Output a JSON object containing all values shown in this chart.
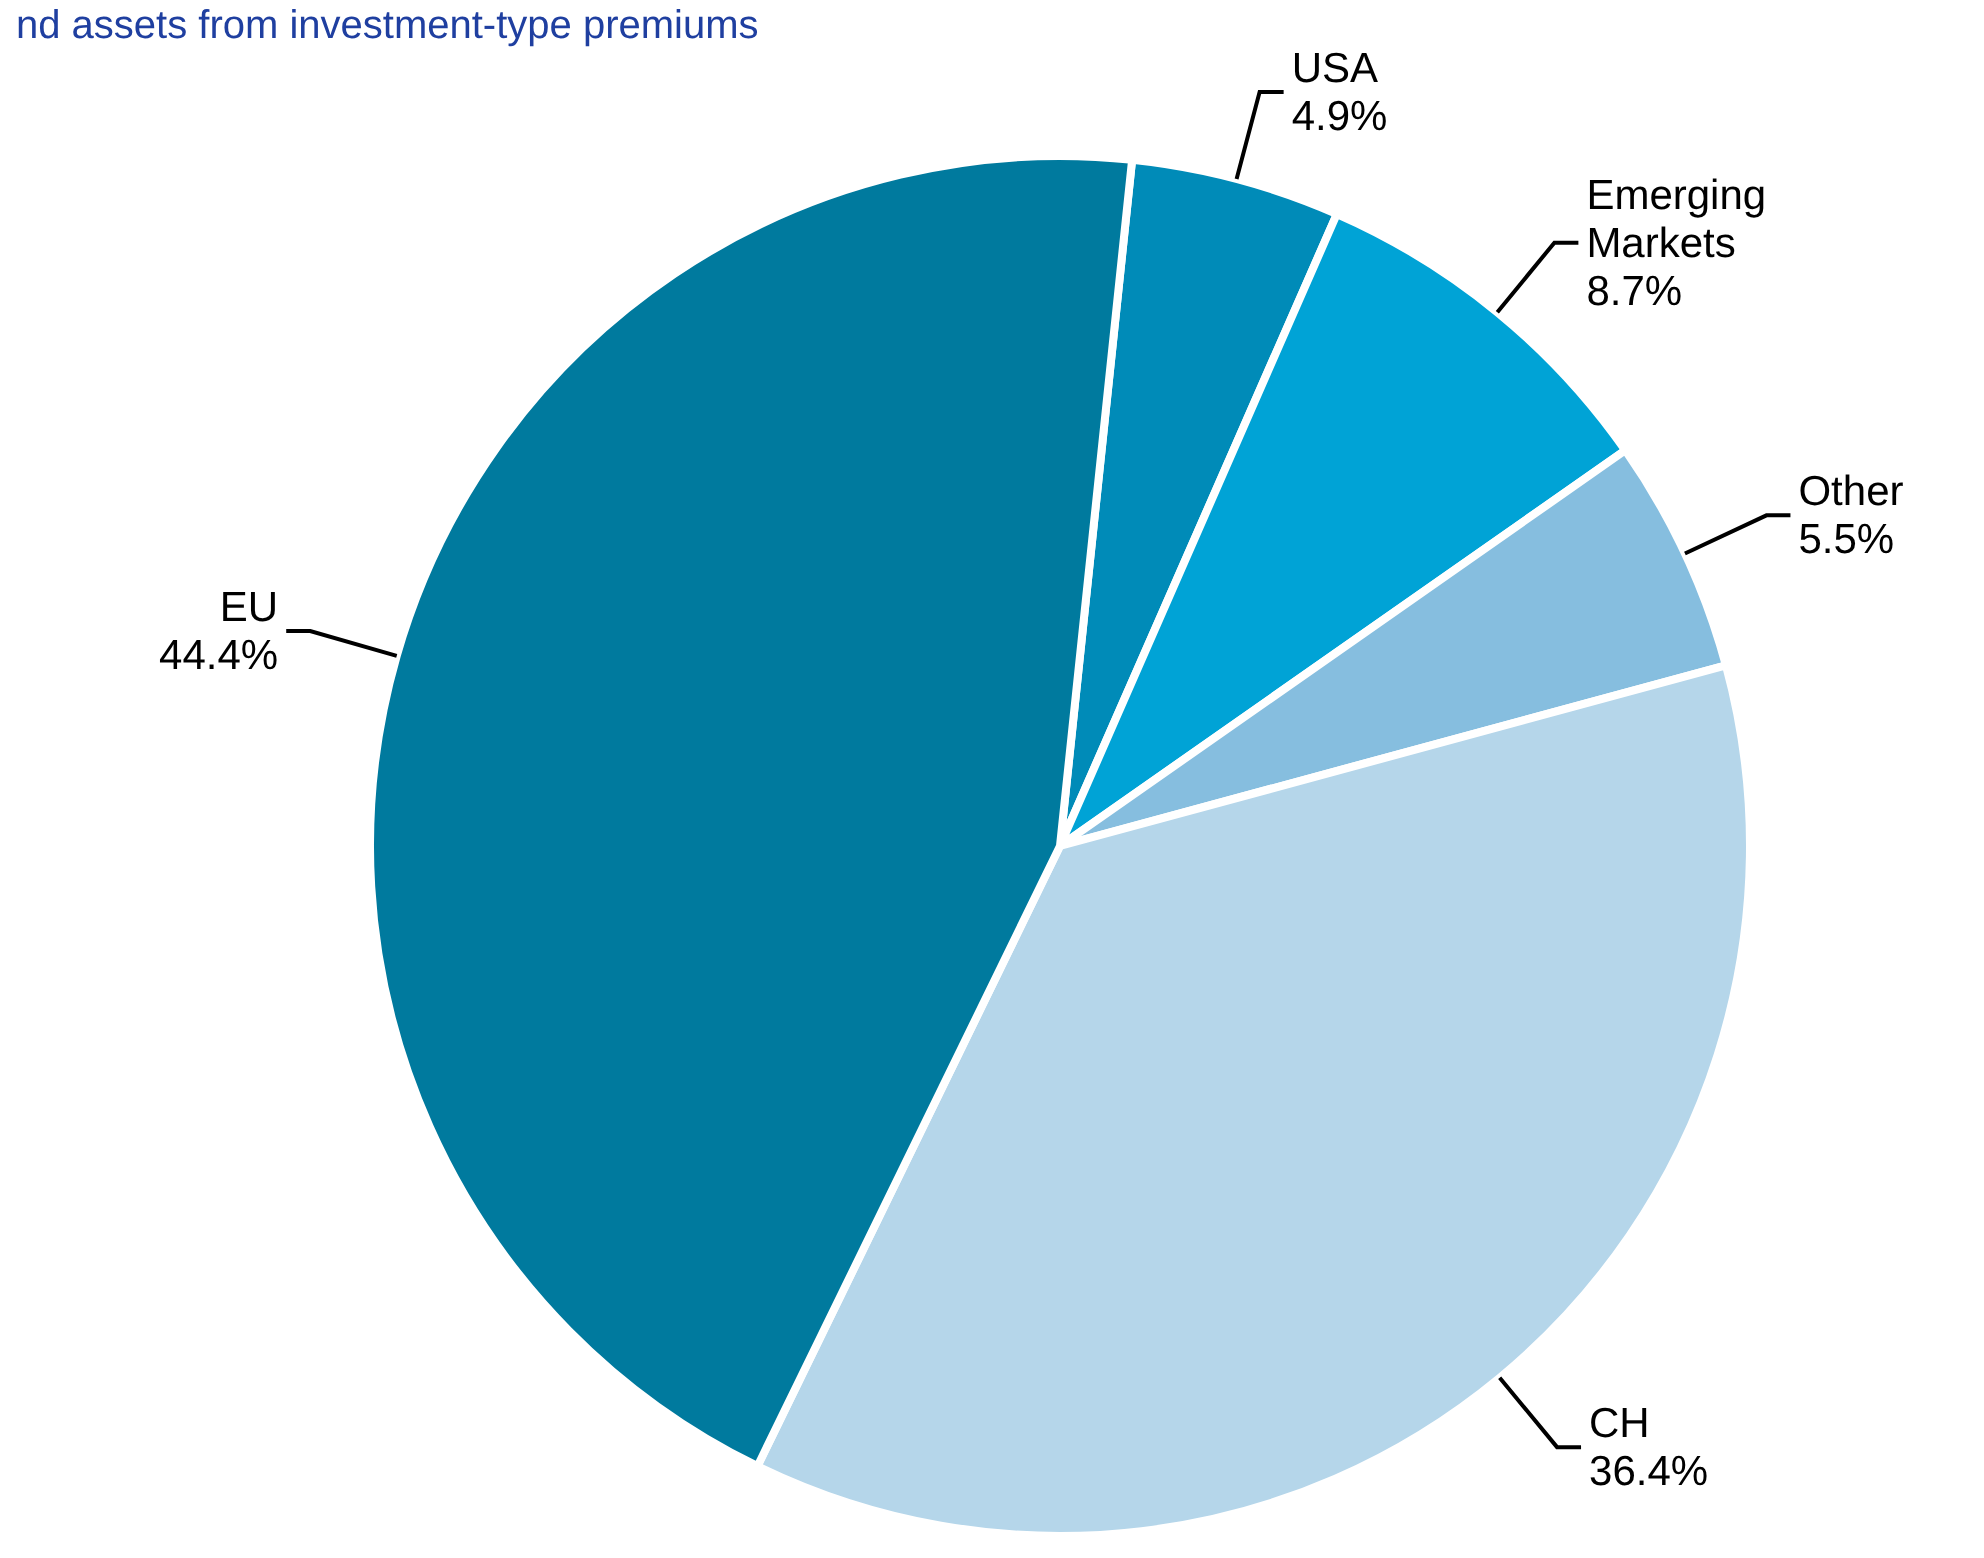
{
  "chart_data": {
    "type": "pie",
    "title": "nd assets from investment-type premiums",
    "categories": [
      "USA",
      "Emerging Markets",
      "Other",
      "CH",
      "EU"
    ],
    "values": [
      4.9,
      8.7,
      5.5,
      36.4,
      44.4
    ],
    "value_labels": [
      "4.9%",
      "8.7%",
      "5.5%",
      "36.4%",
      "44.4%"
    ],
    "colors": [
      "#008bb8",
      "#00a3d6",
      "#86bedf",
      "#b5d6ea",
      "#007a9e"
    ],
    "legend": false
  }
}
